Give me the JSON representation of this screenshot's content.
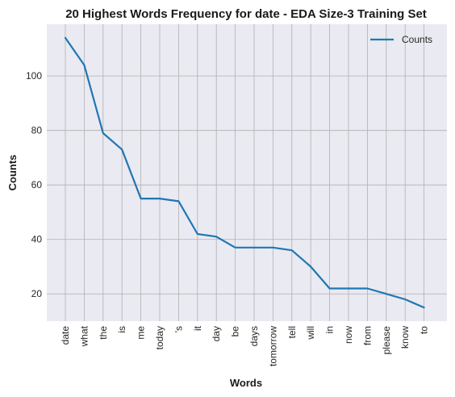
{
  "chart_data": {
    "type": "line",
    "title": "20 Highest Words Frequency for date - EDA Size-3 Training Set",
    "xlabel": "Words",
    "ylabel": "Counts",
    "categories": [
      "date",
      "what",
      "the",
      "is",
      "me",
      "today",
      "'s",
      "it",
      "day",
      "be",
      "days",
      "tomorrow",
      "tell",
      "will",
      "in",
      "now",
      "from",
      "please",
      "know",
      "to"
    ],
    "series": [
      {
        "name": "Counts",
        "values": [
          114,
          104,
          79,
          73,
          55,
          55,
          54,
          42,
          41,
          37,
          37,
          37,
          36,
          30,
          22,
          22,
          22,
          20,
          18,
          15
        ],
        "color": "#1f77b4"
      }
    ],
    "yticks": [
      20,
      40,
      60,
      80,
      100
    ],
    "ylim": [
      10,
      119
    ],
    "grid": true,
    "legend_position": "top-right",
    "background_color": "#eaeaf2",
    "grid_color": "#b0b0b0"
  }
}
